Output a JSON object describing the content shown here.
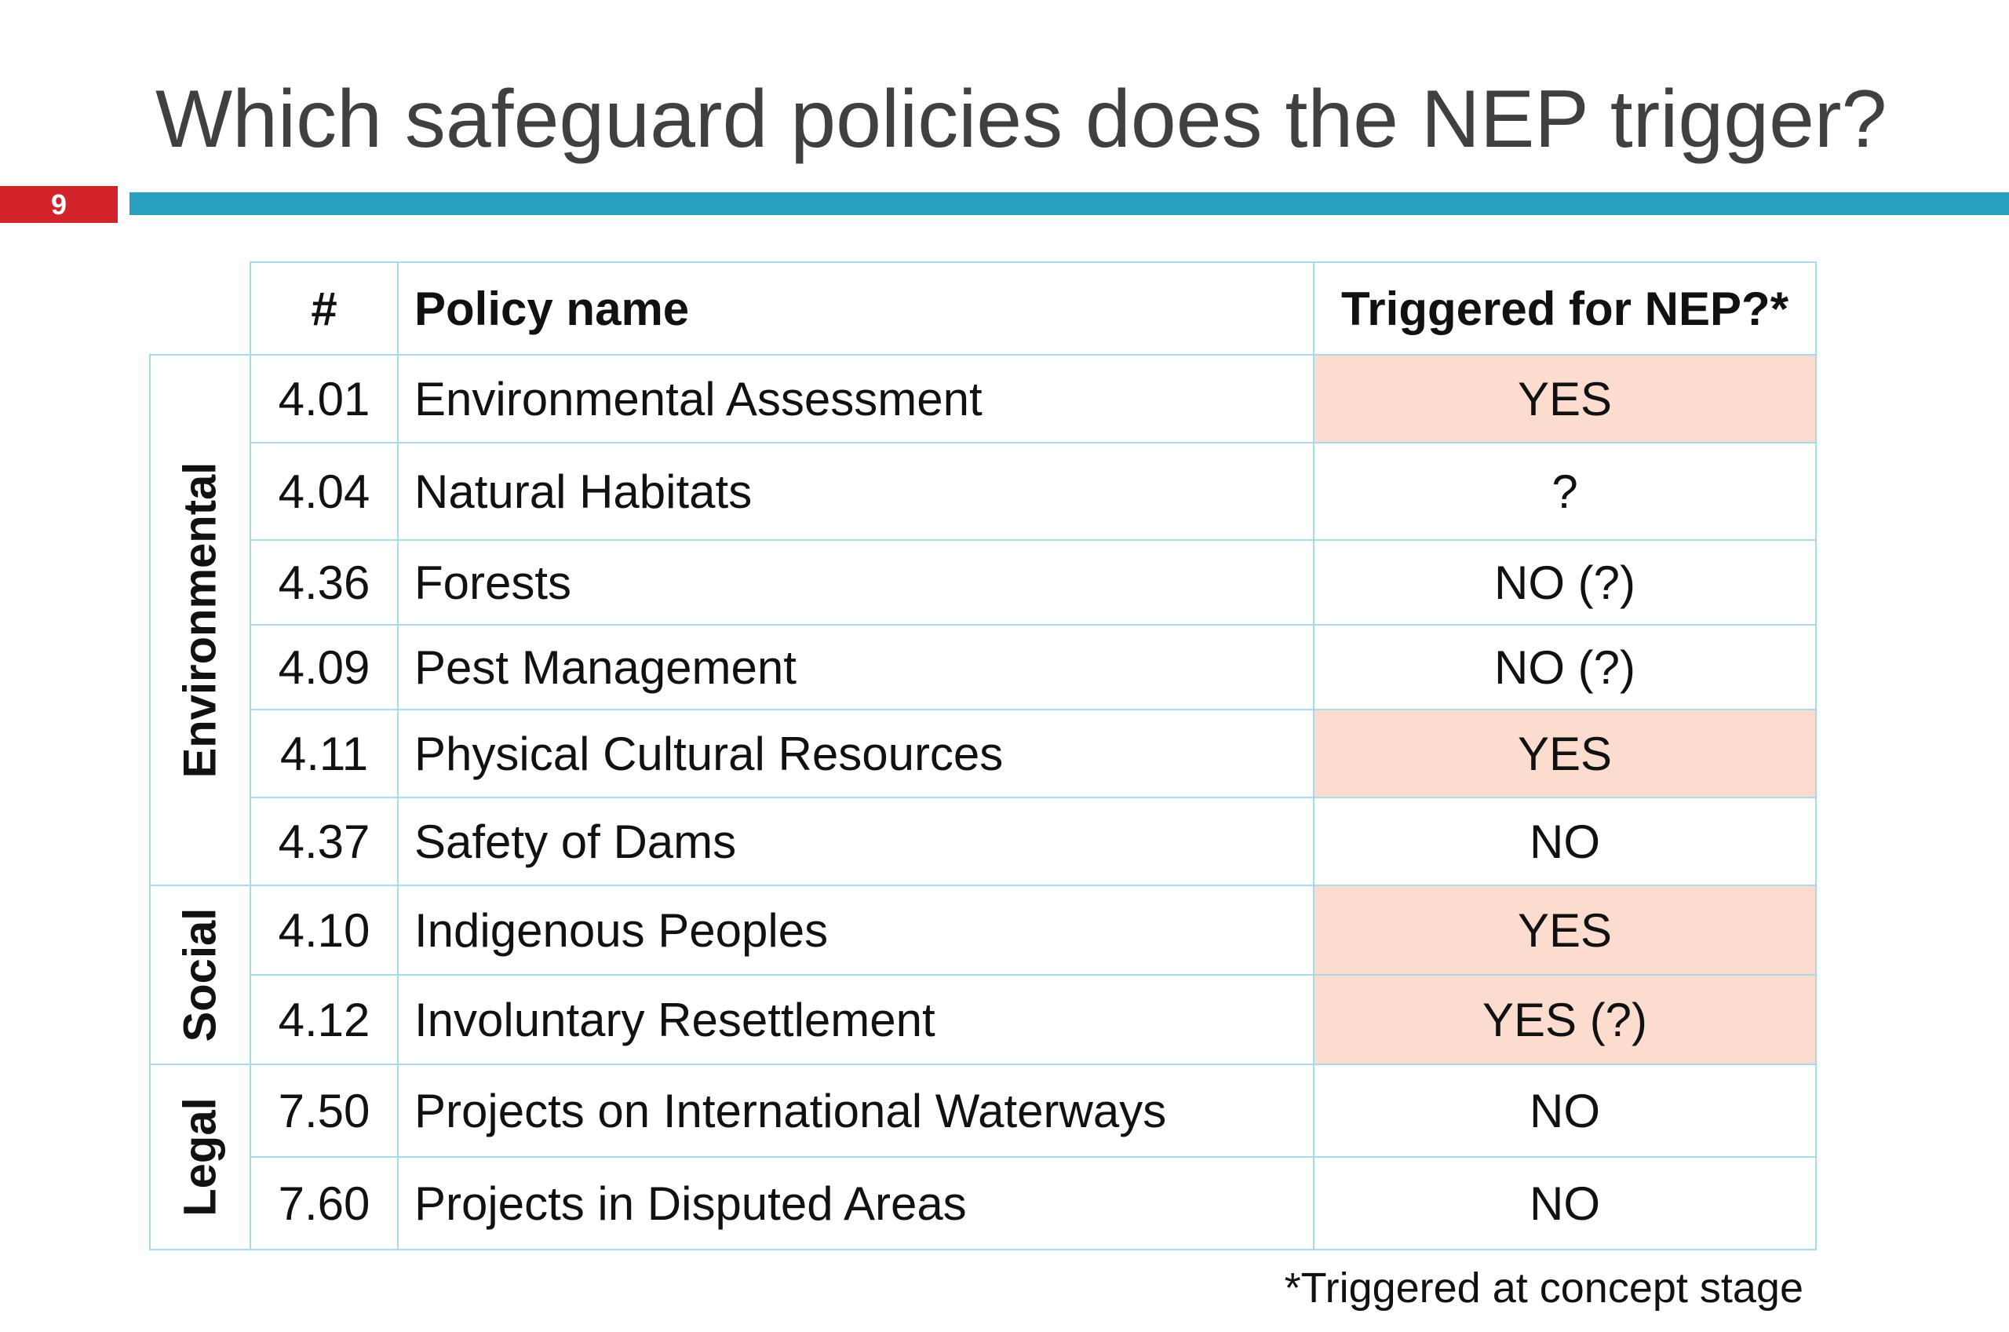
{
  "slide": {
    "title": "Which safeguard policies does the NEP trigger?",
    "number": "9",
    "colors": {
      "accent_bar": "#2aa0c0",
      "number_badge": "#d2232a",
      "highlight": "#fbdccf",
      "grid": "#a9dbe6"
    }
  },
  "table": {
    "headers": {
      "number": "#",
      "policy_name": "Policy name",
      "triggered": "Triggered for NEP?*"
    },
    "groups": [
      {
        "label": "Environmental",
        "rows": [
          {
            "number": "4.01",
            "name": "Environmental Assessment",
            "triggered": "YES",
            "highlighted": true
          },
          {
            "number": "4.04",
            "name": "Natural Habitats",
            "triggered": "?",
            "highlighted": false
          },
          {
            "number": "4.36",
            "name": "Forests",
            "triggered": "NO (?)",
            "highlighted": false
          },
          {
            "number": "4.09",
            "name": "Pest Management",
            "triggered": "NO (?)",
            "highlighted": false
          },
          {
            "number": "4.11",
            "name": "Physical Cultural Resources",
            "triggered": "YES",
            "highlighted": true
          },
          {
            "number": "4.37",
            "name": "Safety of Dams",
            "triggered": "NO",
            "highlighted": false
          }
        ]
      },
      {
        "label": "Social",
        "rows": [
          {
            "number": "4.10",
            "name": "Indigenous Peoples",
            "triggered": "YES",
            "highlighted": true
          },
          {
            "number": "4.12",
            "name": "Involuntary Resettlement",
            "triggered": "YES (?)",
            "highlighted": true
          }
        ]
      },
      {
        "label": "Legal",
        "rows": [
          {
            "number": "7.50",
            "name": "Projects on International Waterways",
            "triggered": "NO",
            "highlighted": false
          },
          {
            "number": "7.60",
            "name": "Projects in Disputed Areas",
            "triggered": "NO",
            "highlighted": false
          }
        ]
      }
    ]
  },
  "footnote": "*Triggered at concept stage"
}
